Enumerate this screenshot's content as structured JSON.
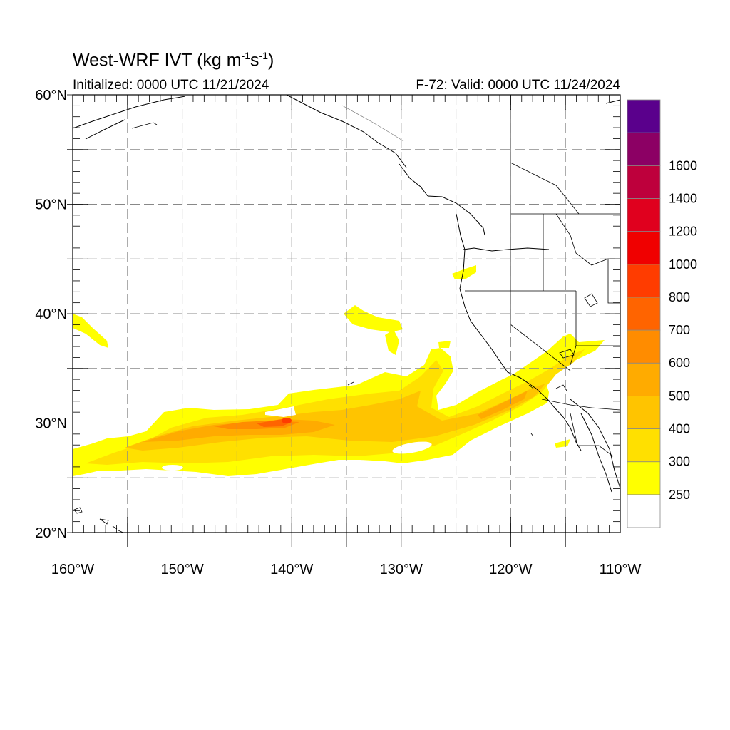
{
  "header": {
    "title_prefix": "West-WRF IVT (kg m",
    "title_exp1": "-1",
    "title_mid": "s",
    "title_exp2": "-1",
    "title_suffix": ")",
    "initialized": "Initialized: 0000 UTC 11/21/2024",
    "valid": "F-72: Valid: 0000 UTC 11/24/2024"
  },
  "map": {
    "lon_range": [
      -160,
      -110
    ],
    "lat_range": [
      20,
      60
    ],
    "lat_ticks": [
      "20°N",
      "30°N",
      "40°N",
      "50°N",
      "60°N"
    ],
    "lon_ticks": [
      "160°W",
      "150°W",
      "140°W",
      "130°W",
      "120°W",
      "110°W"
    ],
    "gridlines": "dashed every 5°"
  },
  "colorbar": {
    "levels": [
      "250",
      "300",
      "400",
      "500",
      "600",
      "700",
      "800",
      "1000",
      "1200",
      "1400",
      "1600"
    ],
    "colors": [
      "#ffffff",
      "#ffff00",
      "#ffe000",
      "#ffc400",
      "#ffab00",
      "#ff8c00",
      "#ff6400",
      "#ff3c00",
      "#f00000",
      "#e0001e",
      "#be003c",
      "#8c0064",
      "#5a008c"
    ]
  }
}
